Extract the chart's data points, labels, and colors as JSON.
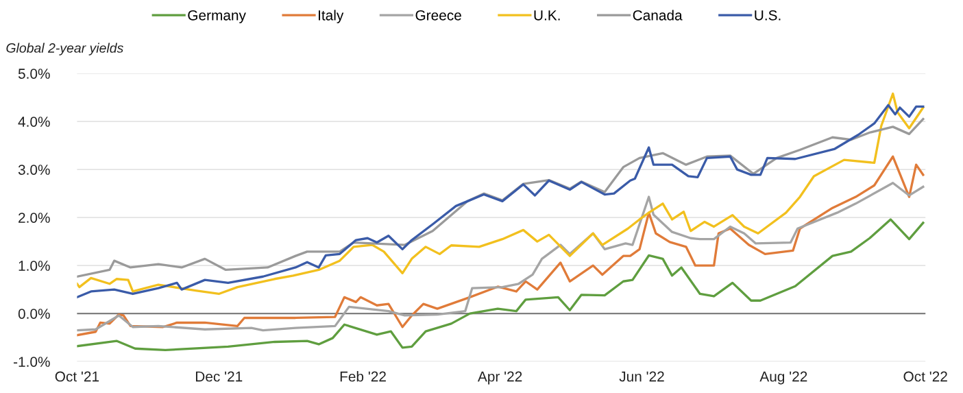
{
  "chart_data": {
    "type": "line",
    "ylabel": "Global 2-year yields",
    "xlim": [
      "2021-10-01",
      "2022-10-01"
    ],
    "xticks": [
      {
        "value": "2021-10-01",
        "label": "Oct '21"
      },
      {
        "value": "2021-12-01",
        "label": "Dec '21"
      },
      {
        "value": "2022-02-01",
        "label": "Feb '22"
      },
      {
        "value": "2022-04-01",
        "label": "Apr '22"
      },
      {
        "value": "2022-06-01",
        "label": "Jun '22"
      },
      {
        "value": "2022-08-01",
        "label": "Aug '22"
      },
      {
        "value": "2022-10-01",
        "label": "Oct '22"
      }
    ],
    "ylim": [
      -1.0,
      5.0
    ],
    "yticks": [
      {
        "value": -1.0,
        "label": "-1.0%"
      },
      {
        "value": 0.0,
        "label": "0.0%"
      },
      {
        "value": 1.0,
        "label": "1.0%"
      },
      {
        "value": 2.0,
        "label": "2.0%"
      },
      {
        "value": 3.0,
        "label": "3.0%"
      },
      {
        "value": 4.0,
        "label": "4.0%"
      },
      {
        "value": 5.0,
        "label": "5.0%"
      }
    ],
    "grid": "y",
    "legend": "top",
    "marker": "none",
    "line_style": "solid",
    "ref_lines": [
      {
        "axis": "y",
        "value": 0.0,
        "label": null,
        "color": "#7f7f7f"
      }
    ],
    "series": [
      {
        "name": "Germany",
        "color": "#5f9e3f",
        "x": [
          "2021-10-01",
          "2021-10-18",
          "2021-10-26",
          "2021-11-08",
          "2021-12-05",
          "2021-12-25",
          "2022-01-08",
          "2022-01-13",
          "2022-01-19",
          "2022-01-24",
          "2022-02-07",
          "2022-02-13",
          "2022-02-18",
          "2022-02-22",
          "2022-02-28",
          "2022-03-11",
          "2022-03-19",
          "2022-03-31",
          "2022-04-08",
          "2022-04-12",
          "2022-04-26",
          "2022-05-01",
          "2022-05-06",
          "2022-05-16",
          "2022-05-24",
          "2022-05-28",
          "2022-06-04",
          "2022-06-10",
          "2022-06-14",
          "2022-06-18",
          "2022-06-26",
          "2022-07-02",
          "2022-07-10",
          "2022-07-18",
          "2022-07-22",
          "2022-08-06",
          "2022-08-22",
          "2022-08-30",
          "2022-09-07",
          "2022-09-16",
          "2022-09-24",
          "2022-09-30"
        ],
        "values": [
          -0.68,
          -0.57,
          -0.73,
          -0.76,
          -0.69,
          -0.59,
          -0.57,
          -0.64,
          -0.51,
          -0.23,
          -0.44,
          -0.37,
          -0.71,
          -0.69,
          -0.37,
          -0.21,
          0.0,
          0.1,
          0.05,
          0.29,
          0.34,
          0.07,
          0.39,
          0.38,
          0.67,
          0.7,
          1.21,
          1.14,
          0.79,
          0.96,
          0.41,
          0.36,
          0.64,
          0.27,
          0.27,
          0.57,
          1.2,
          1.29,
          1.57,
          1.96,
          1.55,
          1.89
        ]
      },
      {
        "name": "Italy",
        "color": "#e07b39",
        "x": [
          "2021-10-01",
          "2021-10-09",
          "2021-10-11",
          "2021-10-15",
          "2021-10-19",
          "2021-10-21",
          "2021-10-24",
          "2021-11-07",
          "2021-11-13",
          "2021-11-25",
          "2021-12-09",
          "2021-12-12",
          "2022-01-03",
          "2022-01-20",
          "2022-01-24",
          "2022-01-29",
          "2022-01-31",
          "2022-02-07",
          "2022-02-12",
          "2022-02-18",
          "2022-02-22",
          "2022-02-27",
          "2022-03-05",
          "2022-03-19",
          "2022-03-31",
          "2022-04-08",
          "2022-04-12",
          "2022-04-17",
          "2022-04-27",
          "2022-05-01",
          "2022-05-11",
          "2022-05-15",
          "2022-05-24",
          "2022-05-27",
          "2022-05-31",
          "2022-06-04",
          "2022-06-07",
          "2022-06-13",
          "2022-06-20",
          "2022-06-24",
          "2022-07-02",
          "2022-07-04",
          "2022-07-09",
          "2022-07-17",
          "2022-07-24",
          "2022-08-05",
          "2022-08-08",
          "2022-08-22",
          "2022-09-01",
          "2022-09-09",
          "2022-09-17",
          "2022-09-24",
          "2022-09-27",
          "2022-09-30"
        ],
        "values": [
          -0.45,
          -0.38,
          -0.19,
          -0.21,
          -0.02,
          -0.04,
          -0.26,
          -0.28,
          -0.19,
          -0.19,
          -0.26,
          -0.09,
          -0.09,
          -0.07,
          0.34,
          0.24,
          0.34,
          0.17,
          0.2,
          -0.28,
          -0.04,
          0.2,
          0.1,
          0.34,
          0.56,
          0.46,
          0.67,
          0.5,
          1.06,
          0.67,
          1.0,
          0.81,
          1.2,
          1.2,
          1.34,
          2.1,
          1.67,
          1.49,
          1.39,
          1.0,
          1.0,
          1.67,
          1.77,
          1.43,
          1.24,
          1.31,
          1.77,
          2.2,
          2.43,
          2.67,
          3.27,
          2.43,
          3.1,
          2.89
        ]
      },
      {
        "name": "Greece",
        "color": "#a5a5a5",
        "x": [
          "2021-10-01",
          "2021-10-09",
          "2021-10-19",
          "2021-10-25",
          "2021-11-05",
          "2021-11-25",
          "2021-12-15",
          "2021-12-20",
          "2022-01-03",
          "2022-01-20",
          "2022-01-26",
          "2022-02-12",
          "2022-02-19",
          "2022-03-05",
          "2022-03-17",
          "2022-03-20",
          "2022-04-02",
          "2022-04-09",
          "2022-04-15",
          "2022-04-19",
          "2022-04-27",
          "2022-05-01",
          "2022-05-11",
          "2022-05-16",
          "2022-05-25",
          "2022-05-28",
          "2022-05-31",
          "2022-06-04",
          "2022-06-06",
          "2022-06-14",
          "2022-06-22",
          "2022-06-26",
          "2022-07-02",
          "2022-07-09",
          "2022-07-15",
          "2022-07-20",
          "2022-08-04",
          "2022-08-07",
          "2022-08-24",
          "2022-09-01",
          "2022-09-17",
          "2022-09-24",
          "2022-09-30"
        ],
        "values": [
          -0.35,
          -0.33,
          -0.04,
          -0.28,
          -0.26,
          -0.33,
          -0.3,
          -0.35,
          -0.3,
          -0.26,
          0.14,
          0.05,
          -0.04,
          -0.02,
          0.05,
          0.53,
          0.55,
          0.62,
          0.81,
          1.14,
          1.43,
          1.24,
          1.67,
          1.34,
          1.46,
          1.43,
          1.86,
          2.43,
          2.06,
          1.7,
          1.57,
          1.55,
          1.55,
          1.81,
          1.67,
          1.46,
          1.48,
          1.77,
          2.1,
          2.29,
          2.72,
          2.46,
          2.64
        ]
      },
      {
        "name": "U.K.",
        "color": "#f2c01e",
        "x": [
          "2021-10-01",
          "2021-10-02",
          "2021-10-07",
          "2021-10-15",
          "2021-10-18",
          "2021-10-23",
          "2021-10-25",
          "2021-11-05",
          "2021-11-21",
          "2021-12-01",
          "2021-12-09",
          "2021-12-25",
          "2022-01-02",
          "2022-01-13",
          "2022-01-22",
          "2022-01-28",
          "2022-02-05",
          "2022-02-10",
          "2022-02-18",
          "2022-02-22",
          "2022-02-28",
          "2022-03-06",
          "2022-03-11",
          "2022-03-23",
          "2022-04-02",
          "2022-04-11",
          "2022-04-17",
          "2022-04-22",
          "2022-05-01",
          "2022-05-11",
          "2022-05-15",
          "2022-05-26",
          "2022-05-31",
          "2022-06-04",
          "2022-06-10",
          "2022-06-14",
          "2022-06-19",
          "2022-06-22",
          "2022-06-28",
          "2022-07-02",
          "2022-07-10",
          "2022-07-15",
          "2022-07-21",
          "2022-08-02",
          "2022-08-08",
          "2022-08-14",
          "2022-08-27",
          "2022-09-09",
          "2022-09-12",
          "2022-09-17",
          "2022-09-19",
          "2022-09-24",
          "2022-09-30"
        ],
        "values": [
          0.62,
          0.55,
          0.74,
          0.62,
          0.72,
          0.7,
          0.46,
          0.6,
          0.48,
          0.41,
          0.55,
          0.72,
          0.79,
          0.91,
          1.1,
          1.39,
          1.43,
          1.29,
          0.84,
          1.14,
          1.39,
          1.24,
          1.42,
          1.39,
          1.55,
          1.74,
          1.5,
          1.64,
          1.2,
          1.67,
          1.43,
          1.77,
          1.96,
          2.1,
          2.29,
          1.96,
          2.12,
          1.72,
          1.91,
          1.81,
          2.05,
          1.81,
          1.67,
          2.1,
          2.43,
          2.86,
          3.2,
          3.14,
          3.91,
          4.58,
          4.19,
          3.86,
          4.29
        ]
      },
      {
        "name": "Canada",
        "color": "#9a9a9a",
        "x": [
          "2021-10-01",
          "2021-10-15",
          "2021-10-17",
          "2021-10-24",
          "2021-11-05",
          "2021-11-15",
          "2021-11-25",
          "2021-12-04",
          "2021-12-22",
          "2022-01-03",
          "2022-01-08",
          "2022-01-22",
          "2022-01-28",
          "2022-02-19",
          "2022-03-03",
          "2022-03-18",
          "2022-03-25",
          "2022-04-02",
          "2022-04-11",
          "2022-04-22",
          "2022-05-01",
          "2022-05-06",
          "2022-05-16",
          "2022-05-24",
          "2022-05-31",
          "2022-06-10",
          "2022-06-20",
          "2022-06-29",
          "2022-07-09",
          "2022-07-19",
          "2022-07-29",
          "2022-08-08",
          "2022-08-22",
          "2022-08-30",
          "2022-09-07",
          "2022-09-17",
          "2022-09-24",
          "2022-09-30"
        ],
        "values": [
          0.77,
          0.91,
          1.1,
          0.96,
          1.03,
          0.96,
          1.14,
          0.91,
          0.96,
          1.2,
          1.29,
          1.29,
          1.48,
          1.43,
          1.72,
          2.34,
          2.5,
          2.36,
          2.7,
          2.78,
          2.6,
          2.75,
          2.53,
          3.05,
          3.24,
          3.34,
          3.1,
          3.27,
          3.29,
          2.91,
          3.24,
          3.41,
          3.67,
          3.62,
          3.77,
          3.89,
          3.74,
          4.05
        ]
      },
      {
        "name": "U.S.",
        "color": "#3a5ba8",
        "x": [
          "2021-10-01",
          "2021-10-07",
          "2021-10-17",
          "2021-10-25",
          "2021-11-05",
          "2021-11-13",
          "2021-11-15",
          "2021-11-25",
          "2021-12-05",
          "2021-12-20",
          "2022-01-03",
          "2022-01-08",
          "2022-01-13",
          "2022-01-16",
          "2022-01-22",
          "2022-01-29",
          "2022-02-03",
          "2022-02-07",
          "2022-02-12",
          "2022-02-18",
          "2022-02-22",
          "2022-03-03",
          "2022-03-13",
          "2022-03-18",
          "2022-03-25",
          "2022-04-02",
          "2022-04-11",
          "2022-04-16",
          "2022-04-22",
          "2022-05-01",
          "2022-05-06",
          "2022-05-16",
          "2022-05-20",
          "2022-05-27",
          "2022-05-29",
          "2022-06-04",
          "2022-06-06",
          "2022-06-14",
          "2022-06-21",
          "2022-06-25",
          "2022-06-29",
          "2022-07-09",
          "2022-07-12",
          "2022-07-18",
          "2022-07-22",
          "2022-07-25",
          "2022-08-06",
          "2022-08-23",
          "2022-09-02",
          "2022-09-09",
          "2022-09-15",
          "2022-09-18",
          "2022-09-20",
          "2022-09-24",
          "2022-09-27",
          "2022-09-30"
        ],
        "values": [
          0.34,
          0.46,
          0.5,
          0.41,
          0.53,
          0.64,
          0.5,
          0.7,
          0.64,
          0.77,
          0.96,
          1.07,
          0.96,
          1.21,
          1.24,
          1.53,
          1.57,
          1.48,
          1.62,
          1.34,
          1.53,
          1.86,
          2.24,
          2.34,
          2.48,
          2.34,
          2.69,
          2.46,
          2.77,
          2.58,
          2.74,
          2.48,
          2.5,
          2.77,
          2.81,
          3.46,
          3.1,
          3.1,
          2.86,
          2.84,
          3.24,
          3.27,
          3.0,
          2.89,
          2.89,
          3.24,
          3.22,
          3.43,
          3.72,
          3.96,
          4.34,
          4.15,
          4.29,
          4.1,
          4.31,
          4.31
        ]
      }
    ]
  }
}
